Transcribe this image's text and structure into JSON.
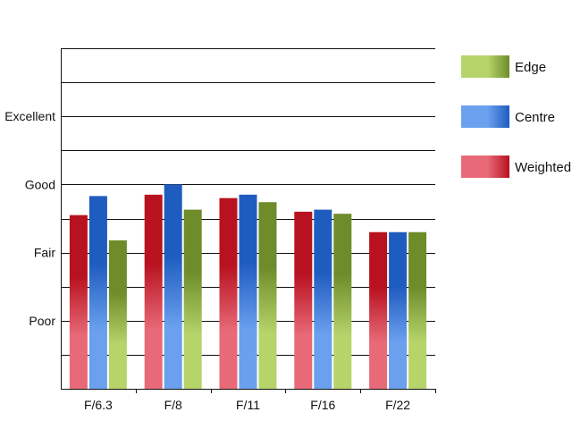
{
  "chart_data": {
    "type": "bar",
    "categories": [
      "F/6.3",
      "F/8",
      "F/11",
      "F/16",
      "F/22"
    ],
    "ylim": [
      0,
      5
    ],
    "y_ticks": [
      {
        "value": 1,
        "label": "Poor"
      },
      {
        "value": 2,
        "label": "Fair"
      },
      {
        "value": 3,
        "label": "Good"
      },
      {
        "value": 4,
        "label": "Excellent"
      }
    ],
    "grid": true,
    "legend_position": "right",
    "series": [
      {
        "name": "Weighted",
        "values": [
          2.55,
          2.85,
          2.8,
          2.6,
          2.3
        ],
        "color": "#b8111f",
        "light": "#e86a78"
      },
      {
        "name": "Centre",
        "values": [
          2.83,
          3.0,
          2.85,
          2.63,
          2.3
        ],
        "color": "#1f5cc0",
        "light": "#6aa0ee"
      },
      {
        "name": "Edge",
        "values": [
          2.18,
          2.63,
          2.74,
          2.57,
          2.3
        ],
        "color": "#6e8c2a",
        "light": "#b6d46a"
      }
    ],
    "legend_order": [
      "Edge",
      "Centre",
      "Weighted"
    ]
  }
}
